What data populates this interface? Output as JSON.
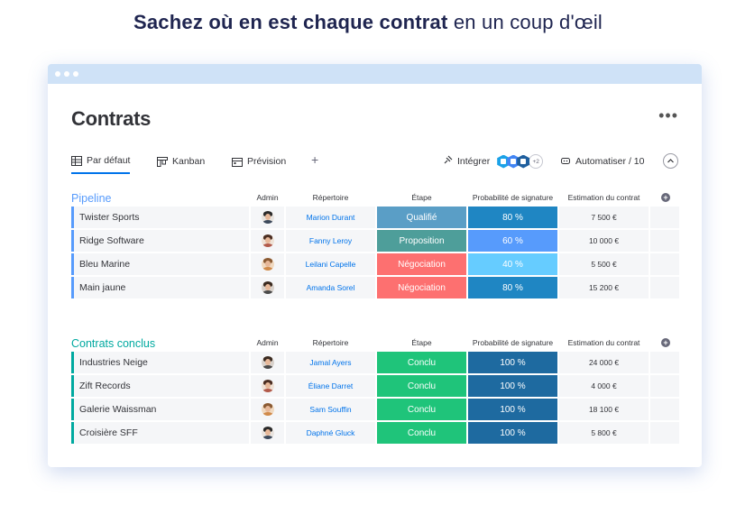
{
  "headline": {
    "bold": "Sachez où en est chaque contrat",
    "light": "en un coup d'œil"
  },
  "board": {
    "title": "Contrats",
    "more_icon": "more-dots-icon",
    "tabs": [
      {
        "label": "Par défaut",
        "icon": "table-icon",
        "active": true
      },
      {
        "label": "Kanban",
        "icon": "kanban-icon",
        "active": false
      },
      {
        "label": "Prévision",
        "icon": "calendar-icon",
        "active": false
      }
    ],
    "add_tab": "+",
    "integrate_label": "Intégrer",
    "integrations_more": "+2",
    "automate_label": "Automatiser / 10"
  },
  "columns": {
    "admin": "Admin",
    "rep": "Répertoire",
    "stage": "Étape",
    "prob": "Probabilité de signature",
    "est": "Estimation du contrat"
  },
  "colors": {
    "pipeline_group": "#579bfc",
    "won_group": "#00a9a0",
    "qualified": "#5a9ec6",
    "proposal": "#4e9e9a",
    "negotiation": "#fd7070",
    "won": "#1fc47a",
    "prob_80": "#1f86c3",
    "prob_60": "#579bfc",
    "prob_40": "#66ccff",
    "prob_100": "#1e6aa0"
  },
  "groups": [
    {
      "title": "Pipeline",
      "color": "#579bfc",
      "rows": [
        {
          "name": "Twister Sports",
          "admin": "man-1",
          "rep": "Marion Durant",
          "stage": "Qualifié",
          "stage_color": "#5a9ec6",
          "prob": "80 %",
          "prob_color": "#1f86c3",
          "est": "7 500 €"
        },
        {
          "name": "Ridge Software",
          "admin": "woman-1",
          "rep": "Fanny Leroy",
          "stage": "Proposition",
          "stage_color": "#4e9e9a",
          "prob": "60 %",
          "prob_color": "#579bfc",
          "est": "10 000 €"
        },
        {
          "name": "Bleu Marine",
          "admin": "woman-2",
          "rep": "Leilani Capelle",
          "stage": "Négociation",
          "stage_color": "#fd7070",
          "prob": "40 %",
          "prob_color": "#66ccff",
          "est": "5 500 €"
        },
        {
          "name": "Main jaune",
          "admin": "man-2",
          "rep": "Amanda Sorel",
          "stage": "Négociation",
          "stage_color": "#fd7070",
          "prob": "80 %",
          "prob_color": "#1f86c3",
          "est": "15 200 €"
        }
      ]
    },
    {
      "title": "Contrats conclus",
      "color": "#00a9a0",
      "rows": [
        {
          "name": "Industries Neige",
          "admin": "man-2",
          "rep": "Jamal Ayers",
          "stage": "Conclu",
          "stage_color": "#1fc47a",
          "prob": "100 %",
          "prob_color": "#1e6aa0",
          "est": "24 000 €"
        },
        {
          "name": "Zift Records",
          "admin": "woman-1",
          "rep": "Éliane Darret",
          "stage": "Conclu",
          "stage_color": "#1fc47a",
          "prob": "100 %",
          "prob_color": "#1e6aa0",
          "est": "4 000 €"
        },
        {
          "name": "Galerie Waissman",
          "admin": "woman-2",
          "rep": "Sam Souffin",
          "stage": "Conclu",
          "stage_color": "#1fc47a",
          "prob": "100 %",
          "prob_color": "#1e6aa0",
          "est": "18 100 €"
        },
        {
          "name": "Croisière SFF",
          "admin": "man-1",
          "rep": "Daphné Gluck",
          "stage": "Conclu",
          "stage_color": "#1fc47a",
          "prob": "100 %",
          "prob_color": "#1e6aa0",
          "est": "5 800 €"
        }
      ]
    }
  ]
}
